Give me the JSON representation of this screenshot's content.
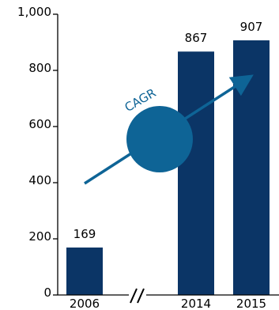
{
  "colors": {
    "bar": "#0b3566",
    "axis": "#000000",
    "text": "#000000",
    "arrow": "#0e6496",
    "circle": "#0e6496",
    "cagr_text": "#0e6496"
  },
  "chart_data": {
    "type": "bar",
    "categories": [
      "2006",
      "2014",
      "2015"
    ],
    "values": [
      169,
      867,
      907
    ],
    "data_labels": [
      "169",
      "867",
      "907"
    ],
    "y_ticks": [
      0,
      200,
      400,
      600,
      800,
      1000
    ],
    "y_tick_labels": [
      "0",
      "200",
      "400",
      "600",
      "800",
      "1,000"
    ],
    "ylim": [
      0,
      1000
    ],
    "axis_break_symbol": "//",
    "annotation": "CAGR",
    "grid": false,
    "legend": "none"
  }
}
